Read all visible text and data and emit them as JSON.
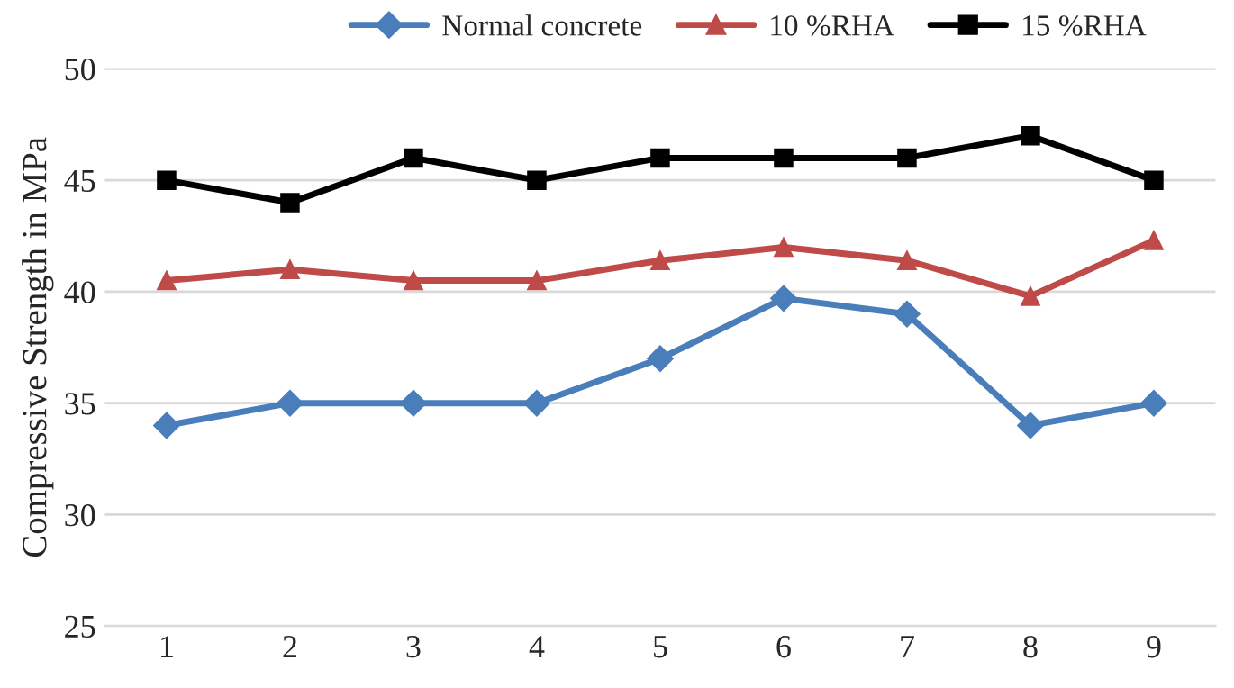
{
  "chart_data": {
    "type": "line",
    "ylabel": "Compressive Strength in MPa",
    "categories": [
      "1",
      "2",
      "3",
      "4",
      "5",
      "6",
      "7",
      "8",
      "9"
    ],
    "series": [
      {
        "name": "Normal concrete",
        "color": "#4a7ebb",
        "marker": "diamond",
        "values": [
          34,
          35,
          35,
          35,
          37,
          39.7,
          39,
          34,
          35
        ]
      },
      {
        "name": "10 %RHA",
        "color": "#be4b48",
        "marker": "triangle",
        "values": [
          40.5,
          41,
          40.5,
          40.5,
          41.4,
          42,
          41.4,
          39.8,
          42.3
        ]
      },
      {
        "name": "15 %RHA",
        "color": "#000000",
        "marker": "square",
        "values": [
          45,
          44,
          46,
          45,
          46,
          46,
          46,
          47,
          45
        ]
      }
    ],
    "ylim": [
      25,
      50
    ],
    "yticks": [
      25,
      30,
      35,
      40,
      45,
      50
    ],
    "grid": "y",
    "legend": "top",
    "line_style": "solid"
  }
}
